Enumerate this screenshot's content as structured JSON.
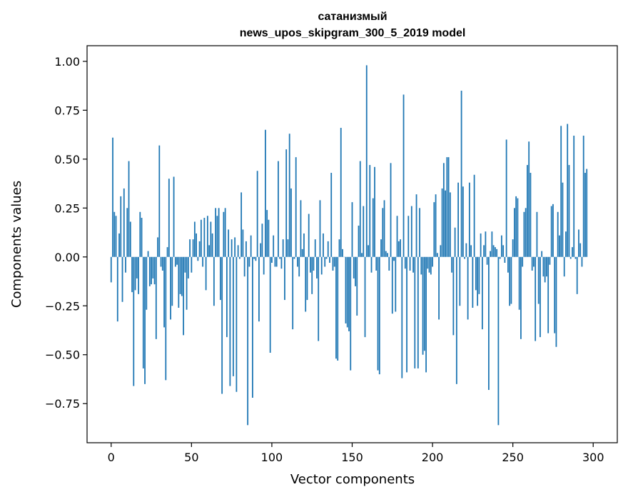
{
  "chart_data": {
    "type": "bar",
    "title": "сатанизмый",
    "subtitle": "news_upos_skipgram_300_5_2019 model",
    "xlabel": "Vector components",
    "ylabel": "Components values",
    "xlim": [
      -15,
      315
    ],
    "ylim": [
      -0.95,
      1.08
    ],
    "xticks": [
      0,
      50,
      100,
      150,
      200,
      250,
      300
    ],
    "yticks": [
      -0.75,
      -0.5,
      -0.25,
      0.0,
      0.25,
      0.5,
      0.75,
      1.0
    ],
    "xtick_labels": [
      "0",
      "50",
      "100",
      "150",
      "200",
      "250",
      "300"
    ],
    "ytick_labels": [
      "−0.75",
      "−0.50",
      "−0.25",
      "0.00",
      "0.25",
      "0.50",
      "0.75",
      "1.00"
    ],
    "bar_color": "#1f77b4",
    "grid": false,
    "values": [
      -0.13,
      0.61,
      0.23,
      0.21,
      -0.33,
      0.12,
      0.31,
      -0.23,
      0.35,
      -0.08,
      0.25,
      0.49,
      0.18,
      -0.18,
      -0.66,
      -0.17,
      -0.11,
      -0.19,
      0.23,
      0.2,
      -0.57,
      -0.65,
      -0.27,
      0.03,
      -0.15,
      -0.14,
      -0.11,
      -0.14,
      -0.42,
      0.1,
      0.57,
      -0.05,
      -0.07,
      -0.36,
      -0.63,
      0.05,
      0.4,
      -0.32,
      -0.25,
      0.41,
      -0.05,
      -0.04,
      -0.26,
      -0.19,
      -0.2,
      -0.4,
      -0.08,
      -0.27,
      -0.11,
      0.09,
      -0.08,
      0.09,
      0.18,
      0.12,
      -0.02,
      0.08,
      0.19,
      -0.05,
      0.2,
      -0.17,
      0.21,
      0.06,
      0.18,
      0.12,
      -0.25,
      0.25,
      0.21,
      0.25,
      -0.22,
      -0.7,
      0.23,
      0.25,
      -0.41,
      0.14,
      -0.66,
      0.09,
      -0.61,
      0.1,
      -0.69,
      0.06,
      -0.01,
      0.33,
      0.14,
      -0.1,
      0.08,
      -0.86,
      -0.05,
      0.11,
      -0.72,
      -0.01,
      -0.02,
      0.44,
      -0.33,
      0.07,
      0.17,
      -0.09,
      0.65,
      0.24,
      0.19,
      -0.49,
      -0.03,
      0.11,
      -0.05,
      -0.05,
      0.49,
      -0.01,
      -0.06,
      0.09,
      -0.22,
      0.55,
      0.09,
      0.63,
      0.35,
      -0.37,
      -0.01,
      0.51,
      -0.05,
      -0.1,
      0.29,
      0.04,
      0.12,
      -0.28,
      -0.22,
      0.22,
      -0.08,
      -0.19,
      -0.07,
      0.09,
      -0.11,
      -0.43,
      0.29,
      -0.09,
      0.12,
      -0.05,
      -0.01,
      0.08,
      -0.03,
      0.43,
      -0.07,
      -0.05,
      -0.52,
      -0.53,
      0.09,
      0.66,
      0.04,
      0.0,
      -0.34,
      -0.36,
      -0.38,
      -0.58,
      0.28,
      -0.11,
      -0.15,
      -0.3,
      0.16,
      0.49,
      0.02,
      0.26,
      -0.41,
      0.98,
      0.06,
      0.47,
      -0.08,
      0.3,
      0.46,
      -0.07,
      -0.58,
      -0.6,
      0.09,
      0.25,
      0.29,
      0.03,
      0.02,
      -0.07,
      0.48,
      -0.29,
      -0.02,
      -0.28,
      0.21,
      0.08,
      0.09,
      -0.62,
      0.83,
      -0.06,
      -0.59,
      0.21,
      -0.07,
      0.26,
      -0.08,
      -0.57,
      0.32,
      -0.57,
      0.25,
      -0.09,
      -0.5,
      -0.48,
      -0.59,
      -0.06,
      -0.08,
      -0.09,
      -0.05,
      0.28,
      0.32,
      0.02,
      -0.32,
      0.06,
      0.35,
      0.48,
      0.34,
      0.51,
      0.51,
      0.33,
      -0.08,
      -0.4,
      0.15,
      -0.65,
      0.38,
      -0.25,
      0.85,
      0.36,
      -0.01,
      0.07,
      -0.32,
      0.38,
      0.06,
      -0.26,
      0.42,
      -0.17,
      -0.25,
      -0.19,
      0.12,
      -0.37,
      0.06,
      0.13,
      -0.04,
      -0.68,
      0.03,
      0.13,
      0.06,
      0.05,
      0.04,
      -0.86,
      -0.01,
      0.11,
      0.06,
      -0.03,
      0.6,
      -0.08,
      -0.25,
      -0.24,
      0.09,
      0.25,
      0.31,
      0.3,
      -0.27,
      -0.42,
      -0.05,
      0.23,
      0.25,
      0.47,
      0.59,
      0.43,
      -0.07,
      -0.05,
      -0.43,
      0.23,
      -0.24,
      -0.41,
      0.03,
      -0.1,
      -0.13,
      -0.1,
      -0.39,
      -0.04,
      0.26,
      0.27,
      -0.39,
      -0.46,
      0.23,
      0.11,
      0.67,
      0.38,
      -0.1,
      0.13,
      0.68,
      0.47,
      -0.01,
      0.05,
      0.62,
      -0.01,
      -0.19,
      0.14,
      0.07,
      -0.05,
      0.62,
      0.43,
      0.45
    ]
  }
}
